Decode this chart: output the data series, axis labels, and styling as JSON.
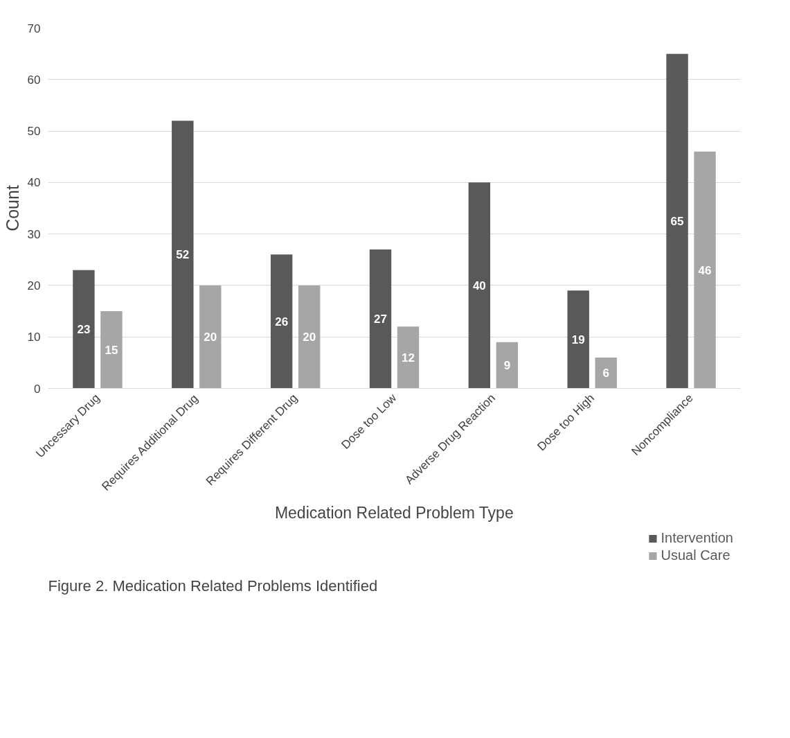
{
  "chart_data": {
    "type": "bar",
    "xlabel": "Medication Related Problem Type",
    "ylabel": "Count",
    "categories": [
      "Uncessary Drug",
      "Requires Additional Drug",
      "Requires Different Drug",
      "Dose too Low",
      "Adverse Drug Reaction",
      "Dose too High",
      "Noncompliance"
    ],
    "series": [
      {
        "name": "Intervention",
        "color": "#595959",
        "values": [
          23,
          52,
          26,
          27,
          40,
          19,
          65
        ]
      },
      {
        "name": "Usual Care",
        "color": "#a6a6a6",
        "values": [
          15,
          20,
          20,
          12,
          9,
          6,
          46
        ]
      }
    ],
    "ylim": [
      0,
      70
    ],
    "yticks": [
      0,
      10,
      20,
      30,
      40,
      50,
      60,
      70
    ],
    "grid": "y",
    "legend": "bottom right",
    "data_labels": true,
    "annotations": [
      "Figure 2.  Medication Related Problems Identified"
    ]
  }
}
